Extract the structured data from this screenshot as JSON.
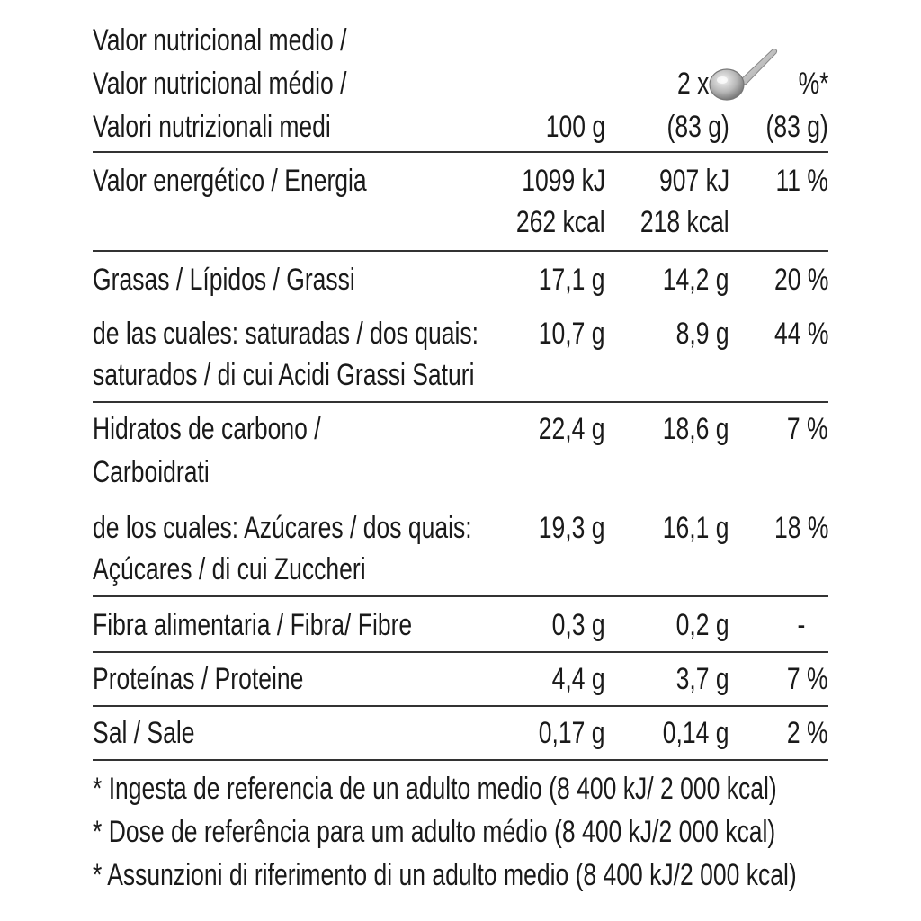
{
  "header": {
    "title_lines": [
      "Valor nutricional medio /",
      "Valor nutricional médio /",
      "Valori nutrizionali medi"
    ],
    "col_100g": "100 g",
    "col_portion_prefix": "2 x",
    "col_portion_amount": "(83 g)",
    "col_percent": "%*",
    "col_percent_amount": "(83 g)",
    "portion_icon": "spoon-icon"
  },
  "rows": [
    {
      "label": [
        "Valor energético / Energia"
      ],
      "per100": [
        "1099 kJ",
        "262 kcal"
      ],
      "portion": [
        "907 kJ",
        "218 kcal"
      ],
      "ri": "11 %"
    },
    {
      "label": [
        "Grasas / Lípidos / Grassi"
      ],
      "per100": [
        "17,1 g"
      ],
      "portion": [
        "14,2 g"
      ],
      "ri": "20 %"
    },
    {
      "label": [
        "de las cuales: saturadas / dos quais:",
        "saturados /  di cui Acidi Grassi Saturi"
      ],
      "per100": [
        "10,7 g"
      ],
      "portion": [
        "8,9 g"
      ],
      "ri": "44 %"
    },
    {
      "label": [
        "Hidratos de carbono /",
        "Carboidrati"
      ],
      "per100": [
        "22,4 g"
      ],
      "portion": [
        "18,6 g"
      ],
      "ri": "7 %"
    },
    {
      "label": [
        "de los cuales: Azúcares / dos quais:",
        "Açúcares / di cui Zuccheri"
      ],
      "per100": [
        "19,3 g"
      ],
      "portion": [
        "16,1 g"
      ],
      "ri": "18 %"
    },
    {
      "label": [
        "Fibra alimentaria / Fibra/ Fibre"
      ],
      "per100": [
        "0,3 g"
      ],
      "portion": [
        "0,2 g"
      ],
      "ri": "-"
    },
    {
      "label": [
        "Proteínas / Proteine"
      ],
      "per100": [
        "4,4 g"
      ],
      "portion": [
        "3,7 g"
      ],
      "ri": "7 %"
    },
    {
      "label": [
        "Sal / Sale"
      ],
      "per100": [
        "0,17 g"
      ],
      "portion": [
        "0,14 g"
      ],
      "ri": "2 %"
    }
  ],
  "footnotes": [
    "* Ingesta de referencia de un adulto medio (8 400 kJ/ 2 000 kcal)",
    "* Dose de referência para um adulto médio (8 400 kJ/2 000 kcal)",
    "* Assunzioni di riferimento di un adulto medio (8 400 kJ/2 000 kcal)"
  ]
}
